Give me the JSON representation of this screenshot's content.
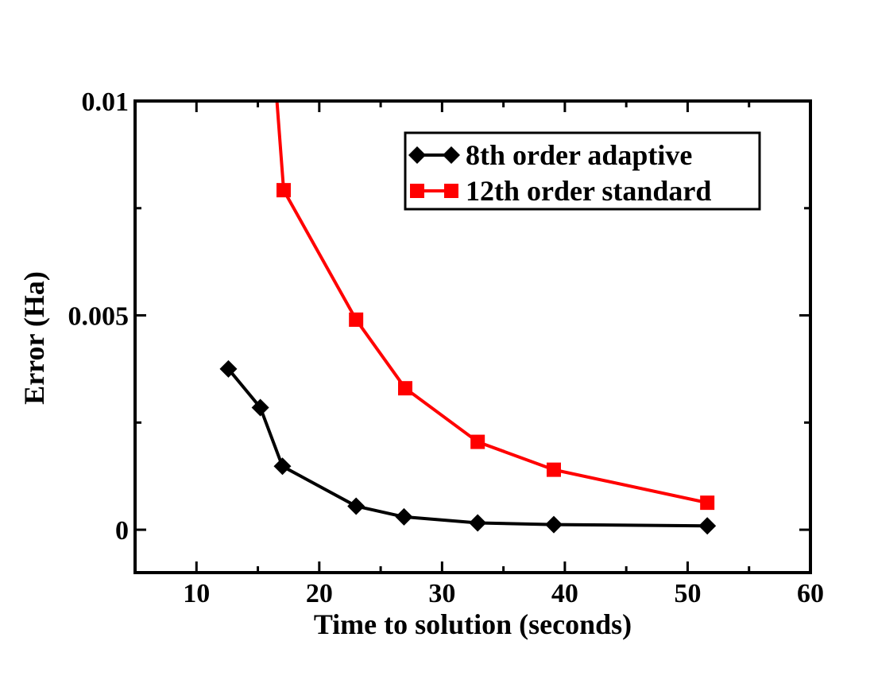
{
  "chart_data": {
    "type": "line",
    "title": "",
    "xlabel": "Time to solution (seconds)",
    "ylabel": "Error (Ha)",
    "xlim": [
      5,
      60
    ],
    "ylim": [
      -0.001,
      0.01
    ],
    "x_ticks": [
      10,
      20,
      30,
      40,
      50,
      60
    ],
    "x_tick_labels": [
      "10",
      "20",
      "30",
      "40",
      "50",
      "60"
    ],
    "y_ticks": [
      0,
      0.005,
      0.01
    ],
    "y_tick_labels": [
      "0",
      "0.005",
      "0.01"
    ],
    "x_minor_ticks": [
      15,
      25,
      35,
      45,
      55
    ],
    "y_minor_ticks": [
      0.0025,
      0.0075
    ],
    "grid": false,
    "legend_position": "top-right",
    "series": [
      {
        "name": "8th order adaptive",
        "color": "#000000",
        "marker": "diamond",
        "x": [
          12.6,
          15.2,
          17.0,
          23.0,
          26.9,
          32.9,
          39.1,
          51.6
        ],
        "y": [
          0.00375,
          0.00285,
          0.00148,
          0.00055,
          0.0003,
          0.00016,
          0.00012,
          9e-05
        ]
      },
      {
        "name": "12th order standard",
        "color": "#ff0000",
        "marker": "square",
        "x": [
          16.5,
          17.1,
          23.0,
          27.0,
          32.9,
          39.1,
          51.6
        ],
        "y": [
          0.0102,
          0.00792,
          0.0049,
          0.0033,
          0.00205,
          0.0014,
          0.00063
        ],
        "clipped_first_point": true
      }
    ]
  }
}
